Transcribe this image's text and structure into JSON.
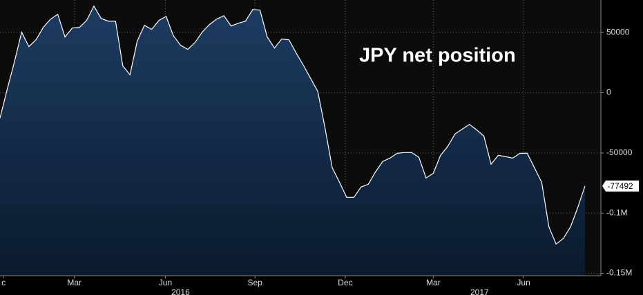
{
  "chart_data": {
    "type": "area",
    "title": "JPY net position",
    "x": [
      0,
      1,
      2,
      3,
      4,
      5,
      6,
      7,
      8,
      9,
      10,
      11,
      12,
      13,
      14,
      15,
      16,
      17,
      18,
      19,
      20,
      21,
      22,
      23,
      24,
      25,
      26,
      27,
      28,
      29,
      30,
      31,
      32,
      33,
      34,
      35,
      36,
      37,
      38,
      39,
      40,
      41,
      42,
      43,
      44,
      45,
      46,
      47,
      48,
      49,
      50,
      51,
      52,
      53,
      54,
      55,
      56,
      57,
      58,
      59,
      60,
      61,
      62,
      63,
      64,
      65,
      66,
      67,
      68,
      69,
      70,
      71,
      72,
      73,
      74,
      75,
      76,
      77,
      78,
      79,
      80,
      81
    ],
    "values": [
      -21100,
      2900,
      25700,
      50300,
      38300,
      44000,
      54300,
      61100,
      65100,
      46300,
      53700,
      54300,
      60000,
      72000,
      61700,
      59400,
      59400,
      22300,
      14900,
      42900,
      56000,
      52600,
      60000,
      63400,
      47400,
      39400,
      36000,
      41700,
      50300,
      56600,
      61100,
      64000,
      55400,
      57700,
      59400,
      69100,
      68600,
      46300,
      37100,
      44600,
      44000,
      33100,
      22900,
      12000,
      1100,
      -29100,
      -62300,
      -74300,
      -86900,
      -86900,
      -78300,
      -76000,
      -65700,
      -57100,
      -54300,
      -50300,
      -49700,
      -49700,
      -53700,
      -70900,
      -66900,
      -52000,
      -44600,
      -34300,
      -30300,
      -26300,
      -30900,
      -36000,
      -59400,
      -52000,
      -53100,
      -54300,
      -50300,
      -50300,
      -62300,
      -74300,
      -111400,
      -125700,
      -121100,
      -111400,
      -95400,
      -77492
    ],
    "color": "#1c3a5e",
    "line_color": "#ffffff",
    "xlim": [
      0,
      83.2
    ],
    "xticks": [
      {
        "value": 0.5,
        "label": "c"
      },
      {
        "value": 10.3,
        "label": "Mar"
      },
      {
        "value": 22.9,
        "label": "Jun"
      },
      {
        "value": 35.3,
        "label": "Sep"
      },
      {
        "value": 47.8,
        "label": "Dec"
      },
      {
        "value": 60.0,
        "label": "Mar"
      },
      {
        "value": 72.5,
        "label": "Jun"
      }
    ],
    "year_ticks": [
      {
        "value": 25.0,
        "label": "2016"
      },
      {
        "value": 66.4,
        "label": "2017"
      }
    ],
    "ylim": [
      -152000,
      77000
    ],
    "yticks": [
      50000,
      0,
      -50000,
      {
        "value": -100000,
        "label": "-0.1M"
      },
      {
        "value": -150000,
        "label": "-0.15M"
      }
    ],
    "grid": true
  }
}
